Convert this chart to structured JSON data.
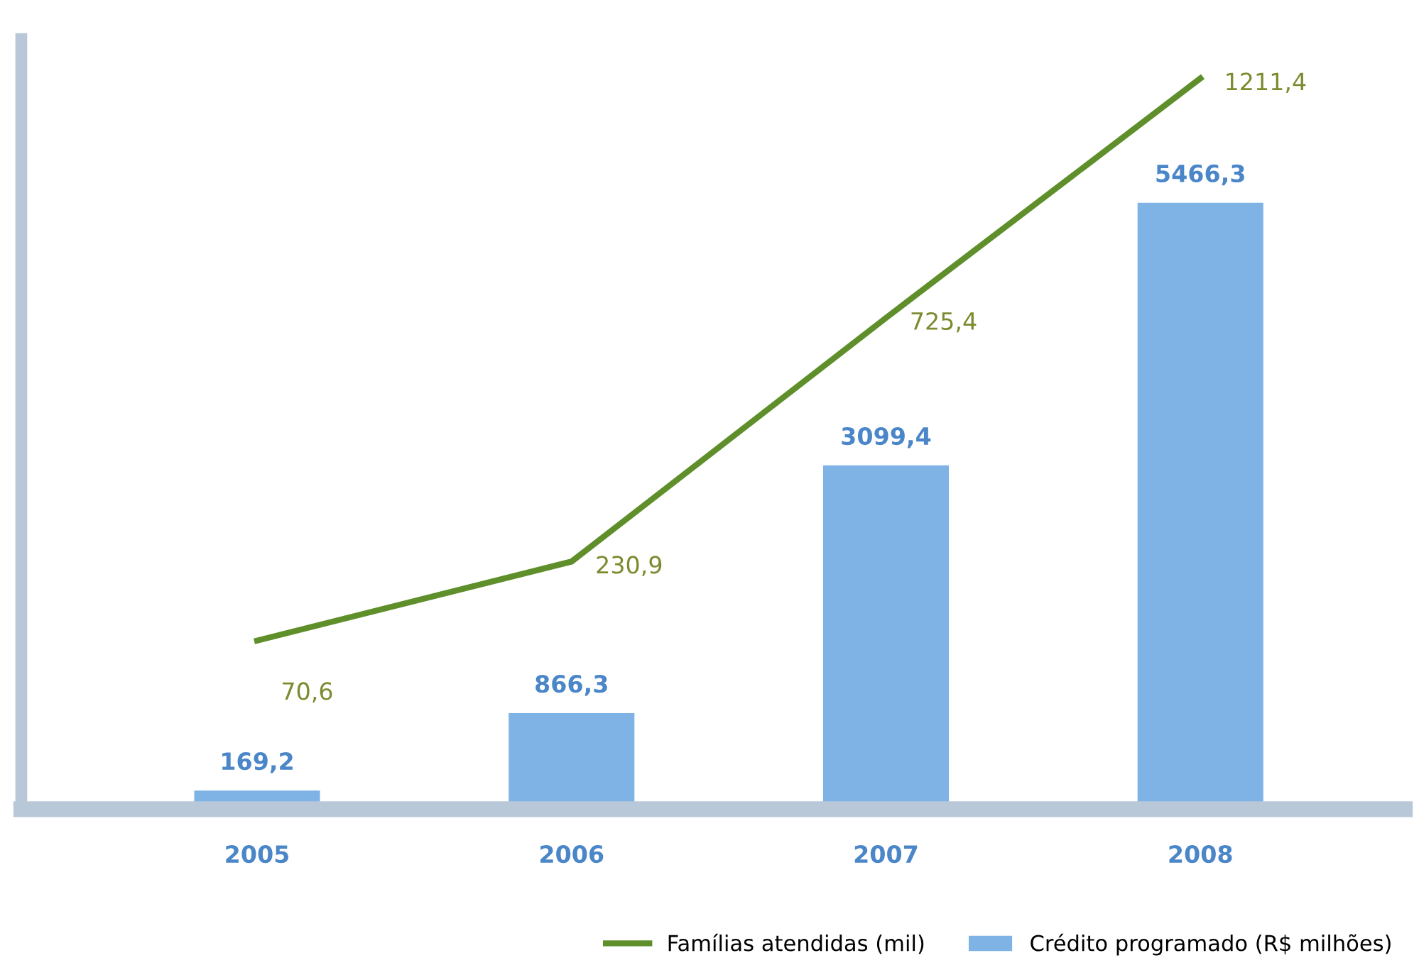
{
  "chart_data": {
    "type": "bar",
    "categories": [
      "2005",
      "2006",
      "2007",
      "2008"
    ],
    "series": [
      {
        "name": "Crédito programado (R$ milhões)",
        "color": "#7fb3e6",
        "values": [
          169.2,
          866.3,
          3099.4,
          5466.3
        ],
        "value_labels": [
          "169,2",
          "866,3",
          "3099,4",
          "5466,3"
        ]
      },
      {
        "name": "Famílias atendidas (mil)",
        "type": "line",
        "axis": "y2",
        "color": "#5f8f2a",
        "values": [
          70.6,
          230.9,
          725.4,
          1211.4
        ],
        "value_labels": [
          "70,6",
          "230,9",
          "725,4",
          "1211,4"
        ]
      }
    ],
    "grid": false,
    "legend": "bottom right",
    "marker": "none",
    "line_style": "solid"
  }
}
